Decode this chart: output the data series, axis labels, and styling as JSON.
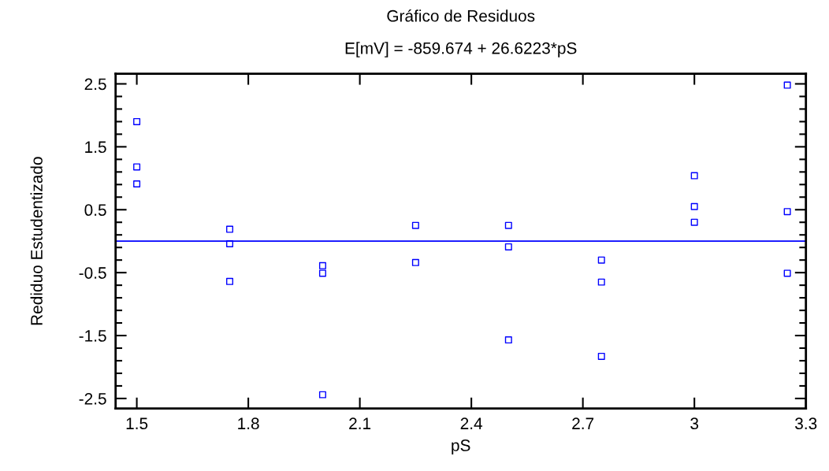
{
  "chart_data": {
    "type": "scatter",
    "title": "Gráfico de Residuos",
    "subtitle": "E[mV] = -859.674 + 26.6223*pS",
    "xlabel": "pS",
    "ylabel": "Rediduo Estudentizado",
    "x": [
      1.5,
      1.5,
      1.5,
      1.75,
      1.75,
      1.75,
      2.0,
      2.0,
      2.0,
      2.25,
      2.25,
      2.5,
      2.5,
      2.5,
      2.75,
      2.75,
      2.75,
      3.0,
      3.0,
      3.0,
      3.25,
      3.25,
      3.25
    ],
    "series": [
      {
        "color": "#0000ff",
        "values": [
          1.9,
          1.18,
          0.91,
          0.19,
          -0.04,
          -0.64,
          -0.39,
          -0.51,
          -2.44,
          0.25,
          -0.34,
          0.25,
          -0.09,
          -1.57,
          -0.3,
          -0.65,
          -1.83,
          1.04,
          0.55,
          0.3,
          2.48,
          0.47,
          -0.51
        ]
      }
    ],
    "marker": "square",
    "xlim": [
      1.443,
      3.3
    ],
    "xticks": [
      1.5,
      1.8,
      2.1,
      2.4,
      2.7,
      3,
      3.3
    ],
    "ylim": [
      -2.66,
      2.66
    ],
    "yticks": [
      2.5,
      {
        "value": 2.3,
        "label": null
      },
      {
        "value": 2.1,
        "label": null
      },
      {
        "value": 1.9,
        "label": null
      },
      {
        "value": 1.7,
        "label": null
      },
      1.5,
      {
        "value": 1.3,
        "label": null
      },
      {
        "value": 1.1,
        "label": null
      },
      {
        "value": 0.9,
        "label": null
      },
      {
        "value": 0.7,
        "label": null
      },
      0.5,
      {
        "value": 0.3,
        "label": null
      },
      {
        "value": 0.1,
        "label": null
      },
      {
        "value": -0.1,
        "label": null
      },
      {
        "value": -0.3,
        "label": null
      },
      -0.5,
      {
        "value": -0.7,
        "label": null
      },
      {
        "value": -0.9,
        "label": null
      },
      {
        "value": -1.1,
        "label": null
      },
      {
        "value": -1.3,
        "label": null
      },
      -1.5,
      {
        "value": -1.7,
        "label": null
      },
      {
        "value": -1.9,
        "label": null
      },
      {
        "value": -2.1,
        "label": null
      },
      {
        "value": -2.3,
        "label": null
      },
      -2.5
    ],
    "ref_lines": [
      {
        "axis": "y",
        "value": 0,
        "color": "#0000ff"
      }
    ],
    "grid": false,
    "legend": false
  }
}
